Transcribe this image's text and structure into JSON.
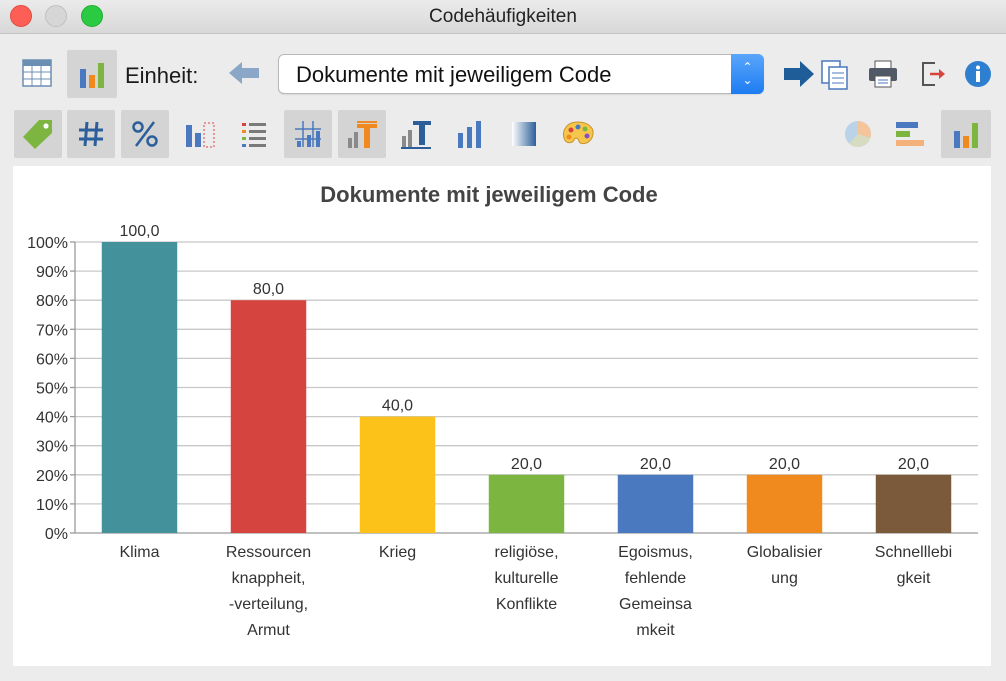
{
  "window": {
    "title": "Codehäufigkeiten"
  },
  "toolbar": {
    "unit_label": "Einheit:",
    "unit_value": "Dokumente mit jeweiligem Code"
  },
  "icons": {
    "table_view": "table-icon",
    "chart_view": "bar-chart-icon",
    "back": "arrow-left-icon",
    "export_copy": "arrow-copy-icon",
    "print": "printer-icon",
    "exit": "exit-icon",
    "info": "info-icon",
    "tag": "tag-icon",
    "count": "hash-icon",
    "percent": "percent-icon",
    "axis": "axis-icon",
    "legend": "list-icon",
    "grid": "grid-icon",
    "labels": "chart-label-icon",
    "title_text": "chart-title-icon",
    "bars": "bars-icon",
    "gradient": "gradient-icon",
    "palette": "palette-icon",
    "pie": "pie-chart-icon",
    "hbar": "horizontal-bar-icon",
    "vbar": "vertical-bar-icon"
  },
  "chart_data": {
    "type": "bar",
    "title": "Dokumente mit jeweiligem Code",
    "categories": [
      [
        "Klima"
      ],
      [
        "Ressourcen",
        "knappheit,",
        "-verteilung,",
        "Armut"
      ],
      [
        "Krieg"
      ],
      [
        "religiöse,",
        "kulturelle",
        "Konflikte"
      ],
      [
        "Egoismus,",
        "fehlende",
        "Gemeinsa",
        "mkeit"
      ],
      [
        "Globalisier",
        "ung"
      ],
      [
        "Schnelllebi",
        "gkeit"
      ]
    ],
    "values": [
      100,
      80,
      40,
      20,
      20,
      20,
      20
    ],
    "value_labels": [
      "100,0",
      "80,0",
      "40,0",
      "20,0",
      "20,0",
      "20,0",
      "20,0"
    ],
    "colors": [
      "#43919b",
      "#d64440",
      "#fdc219",
      "#7db541",
      "#4a79bf",
      "#f18a1e",
      "#7b5a3b"
    ],
    "yticks": [
      "0%",
      "10%",
      "20%",
      "30%",
      "40%",
      "50%",
      "60%",
      "70%",
      "80%",
      "90%",
      "100%"
    ],
    "ylim": [
      0,
      100
    ],
    "grid": true,
    "legend": false
  }
}
